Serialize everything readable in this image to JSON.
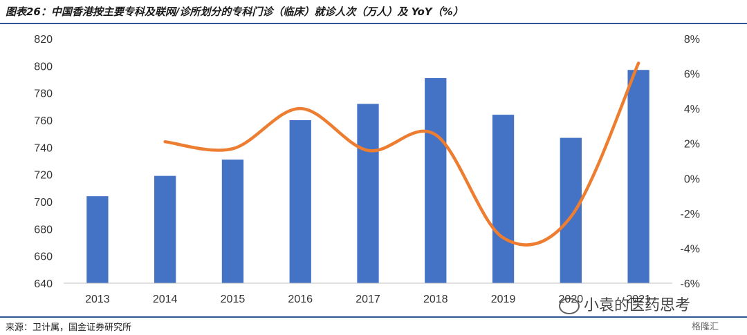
{
  "figure": {
    "title": "图表26：中国香港按主要专科及联网/诊所划分的专科门诊（临床）就诊人次（万人）及 YoY（%）",
    "source": "来源：卫计属，国金证券研究所",
    "watermark": "小袁的医药思考",
    "corner_logo": "格隆汇"
  },
  "colors": {
    "bar": "#4472c4",
    "line": "#ed7d31",
    "rule": "#2f5597",
    "axis_text": "#333333"
  },
  "chart_data": {
    "type": "bar",
    "categories": [
      "2013",
      "2014",
      "2015",
      "2016",
      "2017",
      "2018",
      "2019",
      "2020",
      "2021"
    ],
    "series": [
      {
        "type": "bar",
        "axis": "left",
        "values": [
          704,
          719,
          731,
          760,
          772,
          791,
          764,
          747,
          797
        ]
      },
      {
        "type": "line",
        "axis": "right",
        "smooth": true,
        "values": [
          null,
          2.1,
          1.7,
          4.0,
          1.6,
          2.5,
          -3.4,
          -2.2,
          6.6
        ]
      }
    ],
    "y_left": {
      "min": 640,
      "max": 820,
      "step": 20,
      "ticks": [
        "640",
        "660",
        "680",
        "700",
        "720",
        "740",
        "760",
        "780",
        "800",
        "820"
      ]
    },
    "y_right": {
      "min": -6,
      "max": 8,
      "step": 2,
      "ticks": [
        "-6%",
        "-4%",
        "-2%",
        "0%",
        "2%",
        "4%",
        "6%",
        "8%"
      ]
    },
    "grid": false,
    "legend": "none"
  }
}
